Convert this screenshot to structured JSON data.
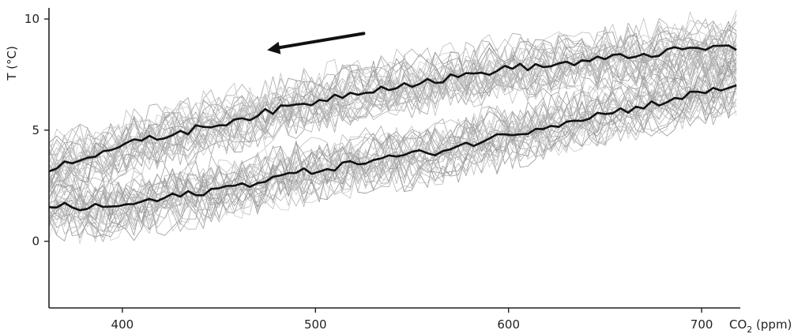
{
  "chart_data": {
    "type": "line",
    "title": "",
    "ylabel": "T (°C)",
    "xlabel_main": "CO",
    "xlabel_sub": "2",
    "xlabel_unit": " (ppm)",
    "xlim": [
      362,
      720
    ],
    "ylim": [
      -3,
      10.5
    ],
    "xticks": [
      {
        "value": 400,
        "label": "400"
      },
      {
        "value": 500,
        "label": "500"
      },
      {
        "value": 600,
        "label": "600"
      },
      {
        "value": 700,
        "label": "700"
      }
    ],
    "yticks": [
      {
        "value": 0,
        "label": "0"
      },
      {
        "value": 5,
        "label": "5"
      },
      {
        "value": 10,
        "label": "10"
      }
    ],
    "grid": false,
    "legend": "none",
    "arrow": {
      "from": [
        525,
        9.35
      ],
      "to": [
        475,
        8.6
      ],
      "meaning": "direction of CO2 decrease"
    },
    "colors": {
      "ensemble": "#9a9a9a",
      "mean": "#111111",
      "axis": "#222222"
    },
    "ensemble": {
      "members_per_branch": 30,
      "spread_c": 1.1,
      "description": "many grey ensemble members around each branch"
    },
    "series": [
      {
        "role": "upper-branch-mean",
        "x": [
          362,
          380,
          400,
          420,
          440,
          460,
          480,
          500,
          520,
          540,
          560,
          580,
          600,
          620,
          640,
          660,
          680,
          700,
          720
        ],
        "y": [
          3.3,
          3.8,
          4.3,
          4.7,
          5.1,
          5.5,
          5.9,
          6.3,
          6.7,
          7.0,
          7.2,
          7.5,
          7.8,
          7.9,
          8.1,
          8.3,
          8.5,
          8.7,
          8.7
        ]
      },
      {
        "role": "lower-branch-mean",
        "x": [
          362,
          380,
          400,
          420,
          440,
          460,
          480,
          500,
          520,
          540,
          560,
          580,
          600,
          620,
          640,
          660,
          680,
          700,
          720
        ],
        "y": [
          1.6,
          1.5,
          1.6,
          1.9,
          2.2,
          2.5,
          2.9,
          3.2,
          3.5,
          3.8,
          4.0,
          4.4,
          4.8,
          5.2,
          5.6,
          5.9,
          6.3,
          6.7,
          7.0
        ]
      }
    ]
  }
}
